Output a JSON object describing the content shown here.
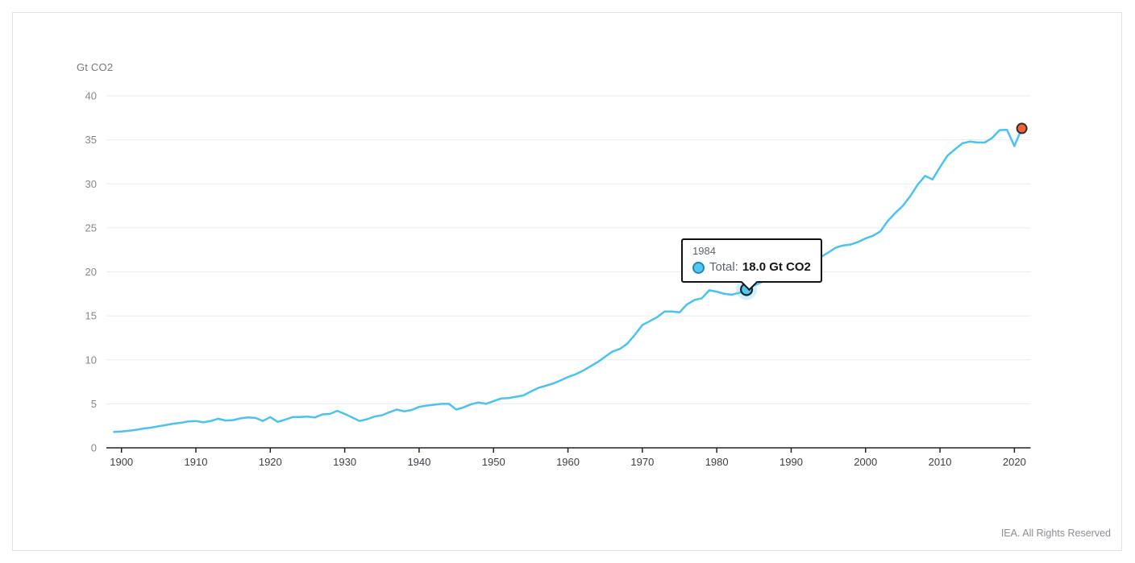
{
  "footer": {
    "attribution": "IEA. All Rights Reserved"
  },
  "tooltip": {
    "year": "1984",
    "series_label": "Total:",
    "value_text": "18.0 Gt CO2"
  },
  "colors": {
    "line": "#4ac2f2",
    "highlight_fill": "#53c6f3",
    "highlight_stroke": "#17272e",
    "highlight_halo": "rgba(74,194,242,0.25)",
    "end_point_fill": "#f4613b",
    "end_point_stroke": "#2f2f2f",
    "gridline": "#ebebeb",
    "axis": "#222222",
    "y_tick_label": "#83878d",
    "x_tick_label": "#3b3f45"
  },
  "chart_data": {
    "type": "line",
    "title": "",
    "xlabel": "",
    "ylabel": "Gt CO2",
    "legend": "none (single series, hover tooltip shown)",
    "grid": "horizontal only",
    "xlim": [
      1898,
      2022
    ],
    "ylim": [
      0,
      40
    ],
    "xticks": [
      1900,
      1910,
      1920,
      1930,
      1940,
      1950,
      1960,
      1970,
      1980,
      1990,
      2000,
      2010,
      2020
    ],
    "yticks": [
      0,
      5,
      10,
      15,
      20,
      25,
      30,
      35,
      40
    ],
    "x_start_year": 1899,
    "x_end_year": 2021,
    "series": [
      {
        "name": "Total",
        "unit": "Gt CO2",
        "values": [
          1.8,
          1.85,
          1.95,
          2.05,
          2.2,
          2.3,
          2.45,
          2.6,
          2.75,
          2.85,
          3.0,
          3.05,
          2.9,
          3.05,
          3.3,
          3.1,
          3.15,
          3.35,
          3.45,
          3.4,
          3.05,
          3.5,
          2.95,
          3.2,
          3.5,
          3.5,
          3.55,
          3.45,
          3.8,
          3.85,
          4.2,
          3.85,
          3.45,
          3.05,
          3.25,
          3.55,
          3.7,
          4.05,
          4.35,
          4.15,
          4.3,
          4.65,
          4.8,
          4.9,
          5.0,
          5.0,
          4.35,
          4.6,
          4.95,
          5.15,
          5.0,
          5.3,
          5.6,
          5.65,
          5.8,
          5.95,
          6.4,
          6.8,
          7.05,
          7.3,
          7.65,
          8.05,
          8.35,
          8.75,
          9.25,
          9.75,
          10.35,
          10.95,
          11.25,
          11.85,
          12.85,
          13.95,
          14.4,
          14.85,
          15.5,
          15.5,
          15.4,
          16.3,
          16.8,
          17.0,
          17.9,
          17.75,
          17.5,
          17.4,
          17.6,
          18.0,
          18.45,
          18.8,
          19.4,
          20.1,
          20.6,
          21.0,
          21.2,
          21.25,
          21.45,
          21.7,
          22.2,
          22.75,
          23.0,
          23.1,
          23.4,
          23.8,
          24.1,
          24.6,
          25.8,
          26.7,
          27.5,
          28.6,
          29.9,
          30.9,
          30.5,
          31.9,
          33.2,
          33.9,
          34.6,
          34.8,
          34.7,
          34.7,
          35.2,
          36.1,
          36.15,
          34.3,
          36.3
        ]
      }
    ],
    "highlight_point": {
      "year": 1984,
      "value": 18.0
    },
    "end_point": {
      "year": 2021,
      "value": 36.3
    }
  }
}
